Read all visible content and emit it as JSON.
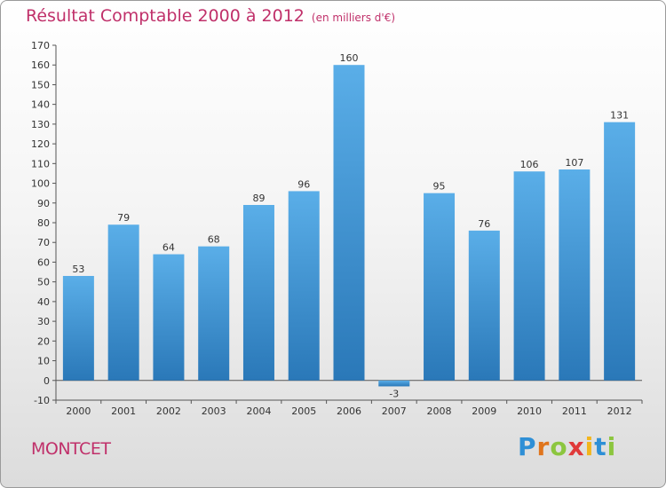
{
  "title": "Résultat Comptable 2000 à 2012",
  "title_unit": "(en milliers d'€)",
  "town": "MONTCET",
  "logo": {
    "letters": [
      "P",
      "r",
      "o",
      "x",
      "i",
      "t",
      "i"
    ],
    "colors": [
      "#2e8fd6",
      "#e0751d",
      "#8cc63f",
      "#e03a3a",
      "#f2b51c",
      "#2e8fd6",
      "#8cc63f"
    ]
  },
  "colors": {
    "bar_top": "#5aaee8",
    "bar_bottom": "#2a78b8",
    "title": "#c0306a"
  },
  "chart_data": {
    "type": "bar",
    "categories": [
      "2000",
      "2001",
      "2002",
      "2003",
      "2004",
      "2005",
      "2006",
      "2007",
      "2008",
      "2009",
      "2010",
      "2011",
      "2012"
    ],
    "values": [
      53,
      79,
      64,
      68,
      89,
      96,
      160,
      -3,
      95,
      76,
      106,
      107,
      131
    ],
    "ylim": [
      -10,
      170
    ],
    "yticks": [
      -10,
      0,
      10,
      20,
      30,
      40,
      50,
      60,
      70,
      80,
      90,
      100,
      110,
      120,
      130,
      140,
      150,
      160,
      170
    ],
    "grid": false,
    "legend": "none"
  }
}
